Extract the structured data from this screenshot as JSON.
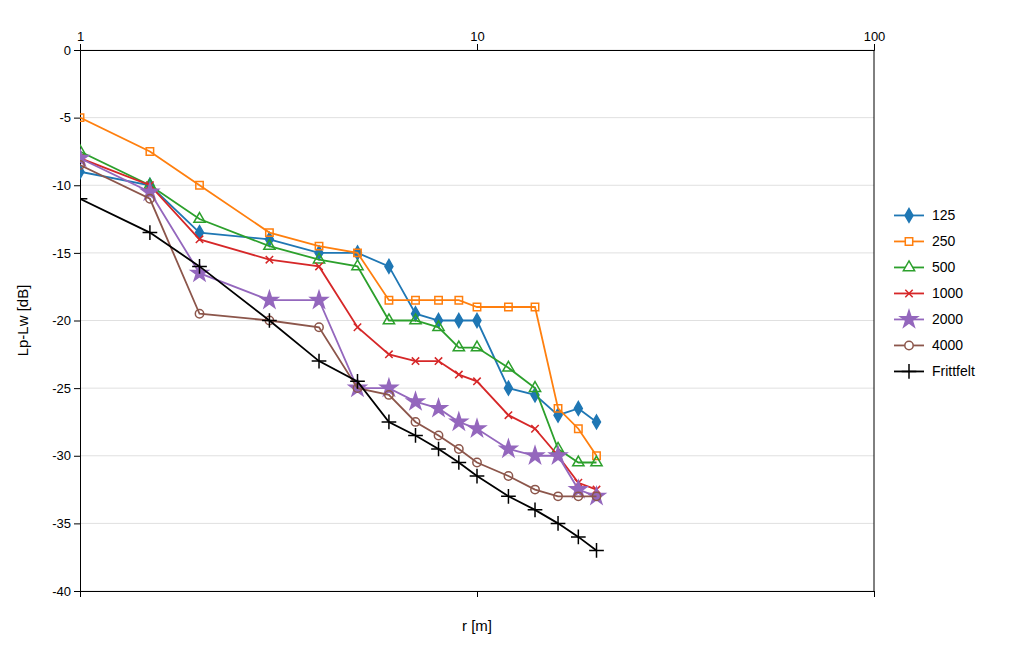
{
  "chart_data": {
    "type": "line",
    "xlabel": "r [m]",
    "ylabel": "Lp-Lw [dB]",
    "log": "x",
    "xlim": [
      1,
      100
    ],
    "ylim": [
      -40,
      0
    ],
    "xticks": [
      1,
      10,
      100
    ],
    "yticks": [
      0,
      -5,
      -10,
      -15,
      -20,
      -25,
      -30,
      -35,
      -40
    ],
    "grid": "y",
    "legend": "right",
    "series": [
      {
        "name": "125",
        "marker": "diamond",
        "x": [
          1.0,
          1.5,
          2.0,
          3.0,
          4.0,
          5.0,
          6.0,
          7.0,
          8.0,
          9.0,
          10.0,
          12.0,
          14.0,
          16.0,
          18.0,
          20.0
        ],
        "values": [
          -9.0,
          -10.0,
          -13.5,
          -14.0,
          -15.0,
          -15.0,
          -16.0,
          -19.5,
          -20.0,
          -20.0,
          -20.0,
          -25.0,
          -25.5,
          -27.0,
          -26.5,
          -27.5
        ]
      },
      {
        "name": "250",
        "marker": "square-open",
        "x": [
          1.0,
          1.5,
          2.0,
          3.0,
          4.0,
          5.0,
          6.0,
          7.0,
          8.0,
          9.0,
          10.0,
          12.0,
          14.0,
          16.0,
          18.0,
          20.0
        ],
        "values": [
          -5.0,
          -7.5,
          -10.0,
          -13.5,
          -14.5,
          -15.0,
          -18.5,
          -18.5,
          -18.5,
          -18.5,
          -19.0,
          -19.0,
          -19.0,
          -26.5,
          -28.0,
          -30.0
        ]
      },
      {
        "name": "500",
        "marker": "triangle-open",
        "x": [
          1.0,
          1.5,
          2.0,
          3.0,
          4.0,
          5.0,
          6.0,
          7.0,
          8.0,
          9.0,
          10.0,
          12.0,
          14.0,
          16.0,
          18.0,
          20.0
        ],
        "values": [
          -7.5,
          -10.0,
          -12.5,
          -14.5,
          -15.5,
          -16.0,
          -20.0,
          -20.0,
          -20.5,
          -22.0,
          -22.0,
          -23.5,
          -25.0,
          -29.5,
          -30.5,
          -30.5
        ]
      },
      {
        "name": "1000",
        "marker": "x",
        "x": [
          1.0,
          1.5,
          2.0,
          3.0,
          4.0,
          5.0,
          6.0,
          7.0,
          8.0,
          9.0,
          10.0,
          12.0,
          14.0,
          16.0,
          18.0,
          20.0
        ],
        "values": [
          -8.0,
          -10.0,
          -14.0,
          -15.5,
          -16.0,
          -20.5,
          -22.5,
          -23.0,
          -23.0,
          -24.0,
          -24.5,
          -27.0,
          -28.0,
          -30.0,
          -32.0,
          -32.5
        ]
      },
      {
        "name": "2000",
        "marker": "star",
        "x": [
          1.0,
          1.5,
          2.0,
          3.0,
          4.0,
          5.0,
          6.0,
          7.0,
          8.0,
          9.0,
          10.0,
          12.0,
          14.0,
          16.0,
          18.0,
          20.0
        ],
        "values": [
          -8.0,
          -10.5,
          -16.5,
          -18.5,
          -18.5,
          -25.0,
          -25.0,
          -26.0,
          -26.5,
          -27.5,
          -28.0,
          -29.5,
          -30.0,
          -30.0,
          -32.5,
          -33.0
        ]
      },
      {
        "name": "4000",
        "marker": "circle-open",
        "x": [
          1.0,
          1.5,
          2.0,
          3.0,
          4.0,
          5.0,
          6.0,
          7.0,
          8.0,
          9.0,
          10.0,
          12.0,
          14.0,
          16.0,
          18.0,
          20.0
        ],
        "values": [
          -8.5,
          -11.0,
          -19.5,
          -20.0,
          -20.5,
          -25.0,
          -25.5,
          -27.5,
          -28.5,
          -29.5,
          -30.5,
          -31.5,
          -32.5,
          -33.0,
          -33.0,
          -33.0
        ]
      },
      {
        "name": "Frittfelt",
        "marker": "plus",
        "color": "#000000",
        "x": [
          1.0,
          1.5,
          2.0,
          3.0,
          4.0,
          5.0,
          6.0,
          7.0,
          8.0,
          9.0,
          10.0,
          12.0,
          14.0,
          16.0,
          18.0,
          20.0
        ],
        "values": [
          -11.0,
          -13.5,
          -16.0,
          -20.0,
          -23.0,
          -24.5,
          -27.5,
          -28.5,
          -29.5,
          -30.5,
          -31.5,
          -33.0,
          -34.0,
          -35.0,
          -36.0,
          -37.0
        ]
      }
    ]
  }
}
